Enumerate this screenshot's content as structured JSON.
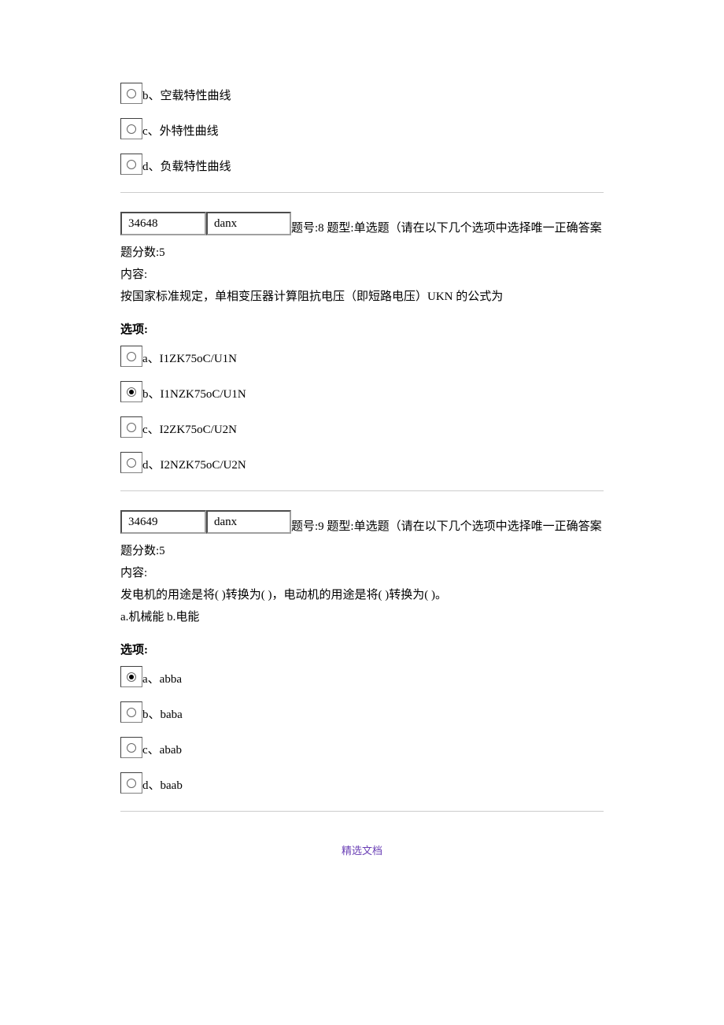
{
  "q7_partial": {
    "options": [
      {
        "key": "b",
        "label": "b、空载特性曲线",
        "checked": false
      },
      {
        "key": "c",
        "label": "c、外特性曲线",
        "checked": false
      },
      {
        "key": "d",
        "label": "d、负载特性曲线",
        "checked": false
      }
    ]
  },
  "q8": {
    "id_num": "34648",
    "id_type": "danx",
    "header_text": "题号:8  题型:单选题（请在以下几个选项中选择唯一正确答案",
    "score_label": "题分数:5",
    "content_label": "内容:",
    "content_text": "按国家标准规定，单相变压器计算阻抗电压（即短路电压）UKN 的公式为",
    "options_heading": "选项:",
    "options": [
      {
        "key": "a",
        "label": "a、I1ZK75oC/U1N",
        "checked": false
      },
      {
        "key": "b",
        "label": "b、I1NZK75oC/U1N",
        "checked": true
      },
      {
        "key": "c",
        "label": "c、I2ZK75oC/U2N",
        "checked": false
      },
      {
        "key": "d",
        "label": "d、I2NZK75oC/U2N",
        "checked": false
      }
    ]
  },
  "q9": {
    "id_num": "34649",
    "id_type": "danx",
    "header_text": "题号:9  题型:单选题（请在以下几个选项中选择唯一正确答案",
    "score_label": "题分数:5",
    "content_label": "内容:",
    "content_text": "发电机的用途是将( )转换为( )，电动机的用途是将( )转换为( )。",
    "content_text2": "a.机械能  b.电能",
    "options_heading": "选项:",
    "options": [
      {
        "key": "a",
        "label": "a、abba",
        "checked": true
      },
      {
        "key": "b",
        "label": "b、baba",
        "checked": false
      },
      {
        "key": "c",
        "label": "c、abab",
        "checked": false
      },
      {
        "key": "d",
        "label": "d、baab",
        "checked": false
      }
    ]
  },
  "footer": "精选文档"
}
